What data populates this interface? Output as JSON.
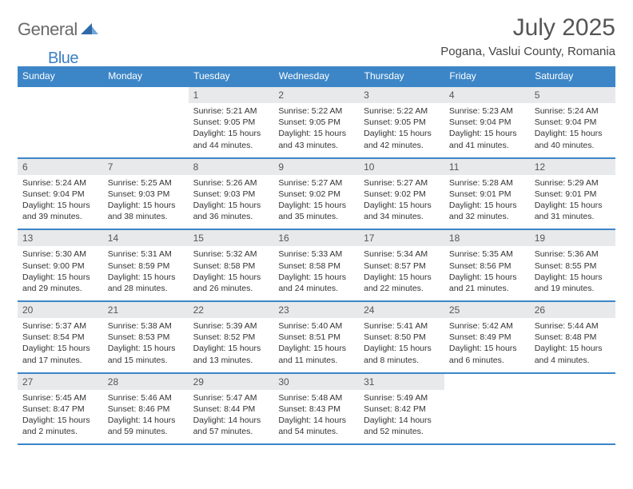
{
  "logo": {
    "general": "General",
    "blue": "Blue"
  },
  "title": "July 2025",
  "location": "Pogana, Vaslui County, Romania",
  "colors": {
    "header_bg": "#3c86c7",
    "header_text": "#ffffff",
    "daynum_bg": "#e8e9ea",
    "border": "#3c86c7",
    "logo_gray": "#6a6a6a",
    "logo_blue": "#3b7fc4"
  },
  "weekdays": [
    "Sunday",
    "Monday",
    "Tuesday",
    "Wednesday",
    "Thursday",
    "Friday",
    "Saturday"
  ],
  "weeks": [
    {
      "nums": [
        "",
        "",
        "1",
        "2",
        "3",
        "4",
        "5"
      ],
      "cells": [
        null,
        null,
        {
          "sr": "5:21 AM",
          "ss": "9:05 PM",
          "dl": "15 hours and 44 minutes."
        },
        {
          "sr": "5:22 AM",
          "ss": "9:05 PM",
          "dl": "15 hours and 43 minutes."
        },
        {
          "sr": "5:22 AM",
          "ss": "9:05 PM",
          "dl": "15 hours and 42 minutes."
        },
        {
          "sr": "5:23 AM",
          "ss": "9:04 PM",
          "dl": "15 hours and 41 minutes."
        },
        {
          "sr": "5:24 AM",
          "ss": "9:04 PM",
          "dl": "15 hours and 40 minutes."
        }
      ]
    },
    {
      "nums": [
        "6",
        "7",
        "8",
        "9",
        "10",
        "11",
        "12"
      ],
      "cells": [
        {
          "sr": "5:24 AM",
          "ss": "9:04 PM",
          "dl": "15 hours and 39 minutes."
        },
        {
          "sr": "5:25 AM",
          "ss": "9:03 PM",
          "dl": "15 hours and 38 minutes."
        },
        {
          "sr": "5:26 AM",
          "ss": "9:03 PM",
          "dl": "15 hours and 36 minutes."
        },
        {
          "sr": "5:27 AM",
          "ss": "9:02 PM",
          "dl": "15 hours and 35 minutes."
        },
        {
          "sr": "5:27 AM",
          "ss": "9:02 PM",
          "dl": "15 hours and 34 minutes."
        },
        {
          "sr": "5:28 AM",
          "ss": "9:01 PM",
          "dl": "15 hours and 32 minutes."
        },
        {
          "sr": "5:29 AM",
          "ss": "9:01 PM",
          "dl": "15 hours and 31 minutes."
        }
      ]
    },
    {
      "nums": [
        "13",
        "14",
        "15",
        "16",
        "17",
        "18",
        "19"
      ],
      "cells": [
        {
          "sr": "5:30 AM",
          "ss": "9:00 PM",
          "dl": "15 hours and 29 minutes."
        },
        {
          "sr": "5:31 AM",
          "ss": "8:59 PM",
          "dl": "15 hours and 28 minutes."
        },
        {
          "sr": "5:32 AM",
          "ss": "8:58 PM",
          "dl": "15 hours and 26 minutes."
        },
        {
          "sr": "5:33 AM",
          "ss": "8:58 PM",
          "dl": "15 hours and 24 minutes."
        },
        {
          "sr": "5:34 AM",
          "ss": "8:57 PM",
          "dl": "15 hours and 22 minutes."
        },
        {
          "sr": "5:35 AM",
          "ss": "8:56 PM",
          "dl": "15 hours and 21 minutes."
        },
        {
          "sr": "5:36 AM",
          "ss": "8:55 PM",
          "dl": "15 hours and 19 minutes."
        }
      ]
    },
    {
      "nums": [
        "20",
        "21",
        "22",
        "23",
        "24",
        "25",
        "26"
      ],
      "cells": [
        {
          "sr": "5:37 AM",
          "ss": "8:54 PM",
          "dl": "15 hours and 17 minutes."
        },
        {
          "sr": "5:38 AM",
          "ss": "8:53 PM",
          "dl": "15 hours and 15 minutes."
        },
        {
          "sr": "5:39 AM",
          "ss": "8:52 PM",
          "dl": "15 hours and 13 minutes."
        },
        {
          "sr": "5:40 AM",
          "ss": "8:51 PM",
          "dl": "15 hours and 11 minutes."
        },
        {
          "sr": "5:41 AM",
          "ss": "8:50 PM",
          "dl": "15 hours and 8 minutes."
        },
        {
          "sr": "5:42 AM",
          "ss": "8:49 PM",
          "dl": "15 hours and 6 minutes."
        },
        {
          "sr": "5:44 AM",
          "ss": "8:48 PM",
          "dl": "15 hours and 4 minutes."
        }
      ]
    },
    {
      "nums": [
        "27",
        "28",
        "29",
        "30",
        "31",
        "",
        ""
      ],
      "cells": [
        {
          "sr": "5:45 AM",
          "ss": "8:47 PM",
          "dl": "15 hours and 2 minutes."
        },
        {
          "sr": "5:46 AM",
          "ss": "8:46 PM",
          "dl": "14 hours and 59 minutes."
        },
        {
          "sr": "5:47 AM",
          "ss": "8:44 PM",
          "dl": "14 hours and 57 minutes."
        },
        {
          "sr": "5:48 AM",
          "ss": "8:43 PM",
          "dl": "14 hours and 54 minutes."
        },
        {
          "sr": "5:49 AM",
          "ss": "8:42 PM",
          "dl": "14 hours and 52 minutes."
        },
        null,
        null
      ]
    }
  ],
  "labels": {
    "sunrise": "Sunrise: ",
    "sunset": "Sunset: ",
    "daylight": "Daylight: "
  }
}
